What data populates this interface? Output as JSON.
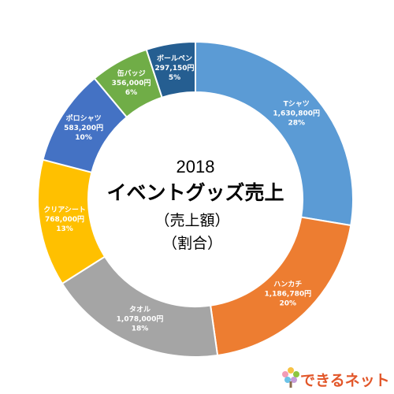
{
  "chart_data": {
    "type": "pie",
    "donut": true,
    "title": "2018",
    "subtitle": "イベントグッズ売上",
    "notes": [
      "（売上額）",
      "（割合）"
    ],
    "unit": "円",
    "slices": [
      {
        "name": "Tシャツ",
        "value": 1630800,
        "value_label": "1,630,800円",
        "percent_label": "28%",
        "color": "#5b9bd5"
      },
      {
        "name": "ハンカチ",
        "value": 1186780,
        "value_label": "1,186,780円",
        "percent_label": "20%",
        "color": "#ed7d31"
      },
      {
        "name": "タオル",
        "value": 1078000,
        "value_label": "1,078,000円",
        "percent_label": "18%",
        "color": "#a5a5a5"
      },
      {
        "name": "クリアシート",
        "value": 768000,
        "value_label": "768,000円",
        "percent_label": "13%",
        "color": "#ffc000"
      },
      {
        "name": "ポロシャツ",
        "value": 583200,
        "value_label": "583,200円",
        "percent_label": "10%",
        "color": "#4472c4"
      },
      {
        "name": "缶バッジ",
        "value": 356000,
        "value_label": "356,000円",
        "percent_label": "6%",
        "color": "#70ad47"
      },
      {
        "name": "ボールペン",
        "value": 297150,
        "value_label": "297,150円",
        "percent_label": "5%",
        "color": "#255e91"
      }
    ]
  },
  "logo": {
    "text": "できるネット",
    "icon": "tree-logo-icon"
  }
}
